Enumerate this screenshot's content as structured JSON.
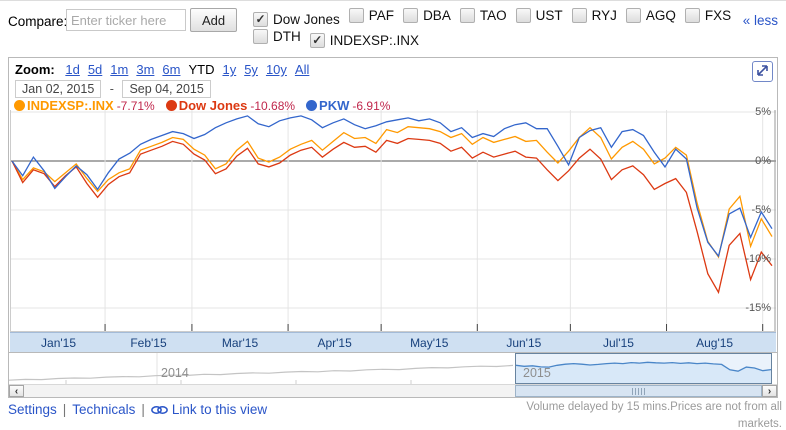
{
  "compare_bar": {
    "label": "Compare:",
    "input_placeholder": "Enter ticker here",
    "add_button": "Add",
    "less_link": "« less",
    "tickers_row1": [
      {
        "label": "Dow Jones",
        "checked": true
      },
      {
        "label": "PAF",
        "checked": false
      },
      {
        "label": "DBA",
        "checked": false
      },
      {
        "label": "TAO",
        "checked": false
      },
      {
        "label": "UST",
        "checked": false
      },
      {
        "label": "RYJ",
        "checked": false
      },
      {
        "label": "AGQ",
        "checked": false
      },
      {
        "label": "FXS",
        "checked": false
      }
    ],
    "tickers_row2": [
      {
        "label": "DTH",
        "checked": false
      },
      {
        "label": "INDEXSP:.INX",
        "checked": true
      }
    ]
  },
  "toolbar": {
    "zoom_label": "Zoom:",
    "zoom_links": [
      {
        "label": "1d",
        "link": true
      },
      {
        "label": "5d",
        "link": true
      },
      {
        "label": "1m",
        "link": true
      },
      {
        "label": "3m",
        "link": true
      },
      {
        "label": "6m",
        "link": true
      },
      {
        "label": "YTD",
        "link": false
      },
      {
        "label": "1y",
        "link": true
      },
      {
        "label": "5y",
        "link": true
      },
      {
        "label": "10y",
        "link": true
      },
      {
        "label": "All",
        "link": true
      }
    ],
    "date_from": "Jan 02, 2015",
    "date_sep": "-",
    "date_to": "Sep 04, 2015"
  },
  "legend": [
    {
      "name": "INDEXSP:.INX",
      "change": "-7.71%",
      "color": "#ff9900"
    },
    {
      "name": "Dow Jones",
      "change": "-10.68%",
      "color": "#dc3912"
    },
    {
      "name": "PKW",
      "change": "-6.91%",
      "color": "#3366cc"
    }
  ],
  "chart_data": {
    "type": "line",
    "title": "",
    "unit": "percent_change_YTD",
    "x_start_label": "Jan 02, 2015",
    "x_end_label": "Sep 04, 2015",
    "x_tick_labels": [
      "Jan'15",
      "Feb'15",
      "Mar'15",
      "Apr'15",
      "May'15",
      "Jun'15",
      "Jul'15",
      "Aug'15"
    ],
    "month_start_days": [
      0,
      30,
      58,
      89,
      119,
      150,
      180,
      211,
      242
    ],
    "total_days": 245,
    "y_ticks": [
      {
        "v": 5,
        "label": "5%"
      },
      {
        "v": 0,
        "label": "0%"
      },
      {
        "v": -5,
        "label": "-5%"
      },
      {
        "v": -10,
        "label": "-10%"
      },
      {
        "v": -15,
        "label": "-15%"
      }
    ],
    "ylim": [
      -17,
      5.3
    ],
    "grid": true,
    "series": [
      {
        "name": "INDEXSP:.INX",
        "color": "#ff9900",
        "final_change": "-7.71%",
        "values": [
          0,
          -1.9,
          -0.7,
          -1.1,
          -2.1,
          -1.2,
          -0.3,
          -1.8,
          -3.1,
          -1.9,
          -1.2,
          -0.8,
          1.1,
          1.5,
          1.9,
          2.4,
          2.2,
          1.2,
          0.6,
          -0.8,
          -0.3,
          1.1,
          2.0,
          0.3,
          -0.1,
          0.4,
          1.2,
          1.7,
          2.1,
          1.1,
          2.0,
          2.9,
          2.3,
          2.4,
          1.8,
          3.2,
          2.9,
          3.5,
          3.4,
          3.3,
          3.0,
          2.4,
          2.8,
          1.7,
          2.4,
          1.9,
          2.2,
          2.5,
          2.0,
          2.1,
          0.9,
          -0.2,
          1.0,
          2.4,
          3.4,
          2.4,
          0.2,
          1.4,
          2.0,
          1.2,
          -0.3,
          0.3,
          1.4,
          0.6,
          -4.3,
          -8.2,
          -9.8,
          -4.9,
          -3.6,
          -8.7,
          -5.9,
          -7.71
        ]
      },
      {
        "name": "Dow Jones",
        "color": "#dc3912",
        "final_change": "-10.68%",
        "values": [
          0,
          -2.2,
          -0.9,
          -1.3,
          -2.6,
          -1.5,
          -0.6,
          -2.3,
          -3.7,
          -2.4,
          -1.6,
          -1.2,
          0.7,
          1.1,
          1.5,
          2.0,
          1.7,
          0.7,
          0.1,
          -1.3,
          -0.8,
          0.5,
          1.3,
          -0.3,
          -0.6,
          -0.2,
          0.6,
          1.1,
          1.4,
          0.4,
          1.2,
          1.9,
          1.4,
          1.5,
          0.9,
          2.1,
          1.8,
          2.3,
          2.2,
          2.1,
          1.8,
          1.0,
          1.4,
          0.3,
          0.9,
          0.4,
          0.7,
          1.0,
          0.4,
          0.3,
          -0.9,
          -2.0,
          -1.0,
          0.3,
          1.2,
          0.2,
          -1.9,
          -0.9,
          -0.5,
          -1.4,
          -2.9,
          -2.3,
          -1.8,
          -3.2,
          -7.2,
          -11.5,
          -13.4,
          -8.6,
          -7.4,
          -12.1,
          -9.3,
          -10.68
        ]
      },
      {
        "name": "PKW",
        "color": "#3366cc",
        "final_change": "-6.91%",
        "values": [
          0,
          -1.5,
          0.4,
          -1.0,
          -2.8,
          -1.6,
          -0.5,
          -1.4,
          -2.9,
          -1.2,
          0.2,
          0.8,
          1.7,
          2.2,
          2.6,
          3.0,
          2.8,
          2.3,
          2.7,
          3.4,
          3.9,
          4.3,
          4.6,
          3.8,
          3.5,
          4.1,
          4.4,
          4.6,
          4.2,
          3.4,
          3.9,
          4.3,
          3.7,
          3.3,
          3.6,
          4.0,
          4.2,
          4.4,
          4.1,
          4.3,
          3.9,
          3.0,
          3.4,
          2.4,
          2.8,
          2.5,
          3.3,
          3.7,
          3.9,
          3.3,
          3.3,
          1.5,
          -0.4,
          2.4,
          3.1,
          3.4,
          1.4,
          3.0,
          3.2,
          2.6,
          0.9,
          -0.6,
          1.2,
          0.2,
          -4.8,
          -8.3,
          -9.7,
          -5.4,
          -4.8,
          -7.8,
          -5.2,
          -6.91
        ]
      }
    ]
  },
  "scrubber": {
    "left_label": "2014",
    "right_label": "2015",
    "left_color": "#c4c4c4",
    "right_color": "#4a86c8",
    "right_fill": "#d8e8f8",
    "left_series": [
      0.1,
      0.13,
      0.12,
      0.16,
      0.18,
      0.17,
      0.21,
      0.23,
      0.22,
      0.26,
      0.28,
      0.27,
      0.31,
      0.3,
      0.34,
      0.36,
      0.35,
      0.39,
      0.41,
      0.4,
      0.44,
      0.43,
      0.47,
      0.49,
      0.48,
      0.52,
      0.55,
      0.54,
      0.58,
      0.6,
      0.59,
      0.63
    ],
    "right_series": [
      0.62,
      0.58,
      0.6,
      0.56,
      0.55,
      0.62,
      0.66,
      0.68,
      0.66,
      0.63,
      0.65,
      0.68,
      0.7,
      0.68,
      0.72,
      0.7,
      0.73,
      0.71,
      0.7,
      0.72,
      0.69,
      0.71,
      0.68,
      0.7,
      0.67,
      0.65,
      0.45,
      0.4,
      0.55,
      0.52,
      0.42,
      0.46
    ]
  },
  "footer": {
    "links": [
      "Settings",
      "Technicals",
      "Link to this view"
    ],
    "separator": "|",
    "disclaimer": "Volume delayed by 15 mins.Prices are not from all markets."
  },
  "icons": {
    "checkmark_glyph": "✓",
    "scroll_left_glyph": "‹",
    "scroll_right_glyph": "›",
    "expand": "diagonal-resize-arrows",
    "link": "chain-link"
  },
  "colors": {
    "link_blue": "#2a55c8",
    "change_text": "#c0274c",
    "band_bg": "#cfe0f2",
    "band_text": "#17407c",
    "grid": "#e4e4e4",
    "zero_line": "#555555"
  }
}
